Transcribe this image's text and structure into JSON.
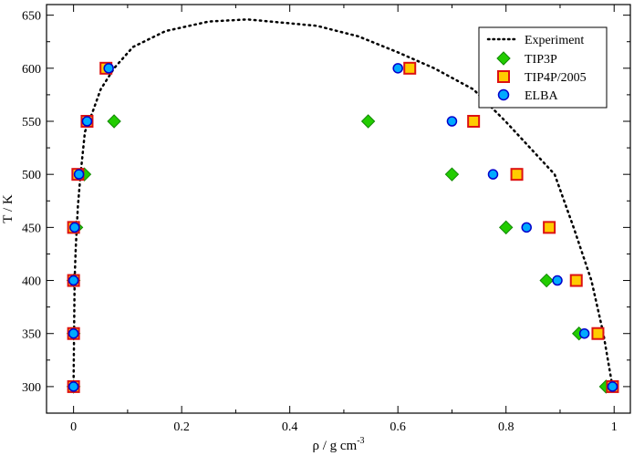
{
  "chart_data": {
    "type": "scatter",
    "xlabel": "ρ / g cm",
    "xlabel_superscript": "-3",
    "ylabel": "T / K",
    "xlim": [
      -0.05,
      1.03
    ],
    "ylim": [
      275,
      660
    ],
    "xticks": [
      "0",
      "0.2",
      "0.4",
      "0.6",
      "0.8",
      "1"
    ],
    "xtick_values": [
      0,
      0.2,
      0.4,
      0.6,
      0.8,
      1.0
    ],
    "yticks": [
      "300",
      "350",
      "400",
      "450",
      "500",
      "550",
      "600",
      "650"
    ],
    "ytick_values": [
      300,
      350,
      400,
      450,
      500,
      550,
      600,
      650
    ],
    "legend_position": "top-right",
    "grid": false,
    "series": [
      {
        "name": "Experiment",
        "style": "dotted-line",
        "color": "#000000",
        "points": [
          [
            0.997,
            300
          ],
          [
            0.98,
            350
          ],
          [
            0.958,
            400
          ],
          [
            0.925,
            450
          ],
          [
            0.89,
            500
          ],
          [
            0.799,
            550
          ],
          [
            0.74,
            580
          ],
          [
            0.667,
            600
          ],
          [
            0.6,
            615
          ],
          [
            0.527,
            630
          ],
          [
            0.45,
            640
          ],
          [
            0.322,
            646
          ],
          [
            0.25,
            644
          ],
          [
            0.17,
            635
          ],
          [
            0.11,
            620
          ],
          [
            0.075,
            600
          ],
          [
            0.05,
            580
          ],
          [
            0.036,
            560
          ],
          [
            0.021,
            540
          ],
          [
            0.013,
            500
          ],
          [
            0.008,
            470
          ],
          [
            0.004,
            430
          ],
          [
            0.002,
            400
          ],
          [
            0.001,
            350
          ],
          [
            0.0,
            300
          ]
        ]
      },
      {
        "name": "TIP3P",
        "marker": "diamond",
        "color": "#22cc00",
        "stroke": "#118800",
        "points": [
          [
            0.0,
            300
          ],
          [
            0.0,
            350
          ],
          [
            0.0,
            400
          ],
          [
            0.005,
            450
          ],
          [
            0.02,
            500
          ],
          [
            0.075,
            550
          ],
          [
            0.985,
            300
          ],
          [
            0.935,
            350
          ],
          [
            0.875,
            400
          ],
          [
            0.8,
            450
          ],
          [
            0.7,
            500
          ],
          [
            0.545,
            550
          ]
        ]
      },
      {
        "name": "TIP4P/2005",
        "marker": "square",
        "color": "#ffcc00",
        "stroke": "#dd1111",
        "points": [
          [
            0.0,
            300
          ],
          [
            0.0,
            350
          ],
          [
            0.0,
            400
          ],
          [
            0.0,
            450
          ],
          [
            0.008,
            500
          ],
          [
            0.025,
            550
          ],
          [
            0.06,
            600
          ],
          [
            0.997,
            300
          ],
          [
            0.97,
            350
          ],
          [
            0.93,
            400
          ],
          [
            0.88,
            450
          ],
          [
            0.82,
            500
          ],
          [
            0.74,
            550
          ],
          [
            0.622,
            600
          ]
        ]
      },
      {
        "name": "ELBA",
        "marker": "circle",
        "color": "#00aaff",
        "stroke": "#0000cc",
        "points": [
          [
            0.0,
            300
          ],
          [
            0.0,
            350
          ],
          [
            0.0,
            400
          ],
          [
            0.002,
            450
          ],
          [
            0.01,
            500
          ],
          [
            0.025,
            550
          ],
          [
            0.065,
            600
          ],
          [
            0.997,
            300
          ],
          [
            0.945,
            350
          ],
          [
            0.895,
            400
          ],
          [
            0.838,
            450
          ],
          [
            0.776,
            500
          ],
          [
            0.7,
            550
          ],
          [
            0.6,
            600
          ]
        ]
      }
    ]
  }
}
